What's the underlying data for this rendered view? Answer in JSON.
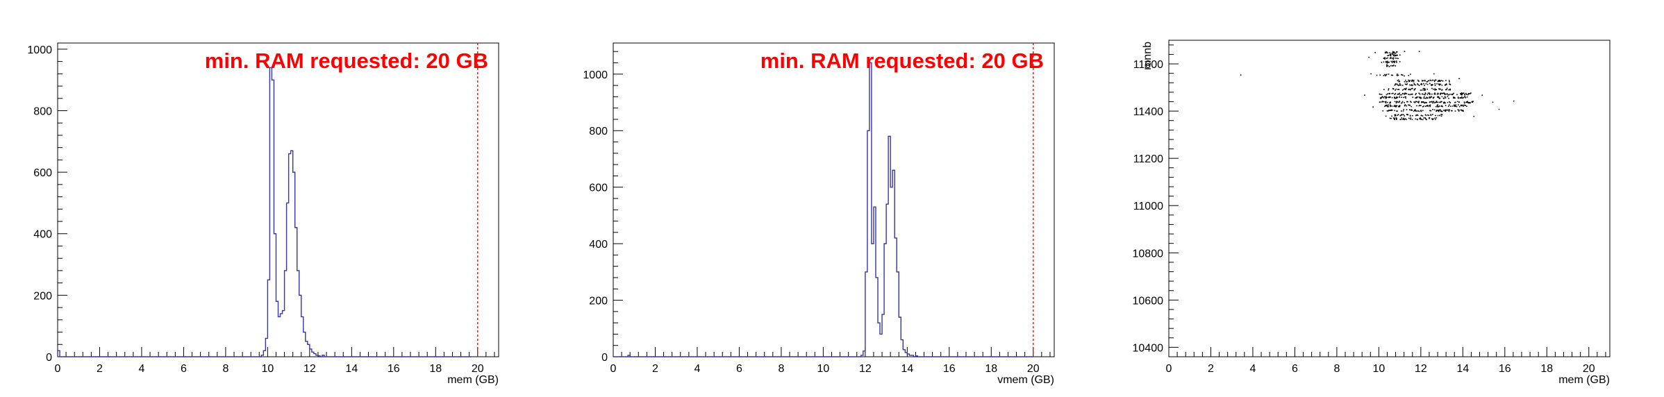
{
  "chart_data": [
    {
      "type": "histogram",
      "title": "",
      "xlabel": "mem (GB)",
      "ylabel": "",
      "xlim": [
        0,
        21
      ],
      "ylim": [
        0,
        1020
      ],
      "xticks": [
        0,
        2,
        4,
        6,
        8,
        10,
        12,
        14,
        16,
        18,
        20
      ],
      "yticks": [
        0,
        200,
        400,
        600,
        800,
        1000
      ],
      "line_color": "#3333aa",
      "annotation": "min. RAM requested: 20 GB",
      "annotation_color": "#ff0000",
      "threshold_line": 20,
      "threshold_color": "#ff0000",
      "bin_width": 0.1,
      "bins_start": 0,
      "counts": [
        20,
        0,
        0,
        0,
        0,
        0,
        0,
        0,
        0,
        0,
        0,
        0,
        0,
        0,
        0,
        0,
        0,
        0,
        0,
        0,
        0,
        0,
        0,
        0,
        0,
        0,
        0,
        0,
        0,
        0,
        0,
        0,
        0,
        0,
        0,
        0,
        0,
        0,
        0,
        0,
        0,
        0,
        0,
        0,
        0,
        0,
        0,
        0,
        0,
        0,
        0,
        0,
        0,
        0,
        0,
        0,
        0,
        0,
        0,
        0,
        0,
        0,
        0,
        0,
        0,
        0,
        0,
        0,
        0,
        0,
        0,
        0,
        0,
        0,
        0,
        0,
        0,
        0,
        0,
        0,
        0,
        0,
        0,
        0,
        0,
        0,
        0,
        0,
        0,
        0,
        0,
        0,
        0,
        0,
        0,
        0,
        0,
        5,
        20,
        60,
        250,
        940,
        900,
        400,
        180,
        130,
        140,
        150,
        280,
        500,
        660,
        670,
        600,
        420,
        280,
        200,
        130,
        80,
        50,
        40,
        25,
        15,
        10,
        5,
        3,
        0,
        5,
        0,
        0,
        0,
        0,
        0,
        0,
        0,
        0,
        0,
        0,
        0,
        0,
        0,
        0,
        0,
        0,
        0,
        0,
        0,
        0,
        0,
        0,
        0,
        0,
        0,
        0,
        0,
        0,
        0,
        0,
        0,
        0,
        0,
        0,
        0,
        0,
        0,
        0,
        0,
        0,
        0,
        0,
        0,
        0,
        0,
        0,
        0,
        0,
        0,
        0,
        0,
        0,
        0,
        0,
        0,
        0,
        0,
        0,
        0,
        0,
        0,
        0,
        0,
        0,
        0,
        0,
        0,
        0,
        0,
        0
      ]
    },
    {
      "type": "histogram",
      "title": "",
      "xlabel": "vmem (GB)",
      "ylabel": "",
      "xlim": [
        0,
        21
      ],
      "ylim": [
        0,
        1110
      ],
      "xticks": [
        0,
        2,
        4,
        6,
        8,
        10,
        12,
        14,
        16,
        18,
        20
      ],
      "yticks": [
        0,
        200,
        400,
        600,
        800,
        1000
      ],
      "line_color": "#3333aa",
      "annotation": "min. RAM requested: 20 GB",
      "annotation_color": "#ff0000",
      "threshold_line": 20,
      "threshold_color": "#ff0000",
      "bin_width": 0.1,
      "bins_start": 0,
      "counts": [
        0,
        0,
        0,
        0,
        0,
        0,
        0,
        5,
        0,
        0,
        0,
        0,
        0,
        0,
        0,
        0,
        0,
        0,
        0,
        0,
        0,
        0,
        0,
        0,
        0,
        0,
        0,
        0,
        0,
        0,
        0,
        0,
        0,
        0,
        0,
        0,
        0,
        0,
        0,
        0,
        0,
        0,
        0,
        0,
        0,
        0,
        0,
        0,
        0,
        0,
        0,
        0,
        0,
        0,
        0,
        0,
        0,
        0,
        0,
        0,
        0,
        0,
        0,
        0,
        0,
        0,
        0,
        0,
        0,
        0,
        0,
        0,
        0,
        0,
        0,
        0,
        0,
        0,
        0,
        0,
        0,
        0,
        0,
        0,
        0,
        0,
        0,
        0,
        0,
        0,
        0,
        0,
        0,
        0,
        0,
        0,
        0,
        0,
        0,
        0,
        0,
        0,
        0,
        0,
        0,
        0,
        0,
        0,
        0,
        0,
        0,
        0,
        0,
        0,
        0,
        0,
        0,
        0,
        5,
        20,
        300,
        800,
        1040,
        400,
        530,
        280,
        120,
        80,
        150,
        400,
        540,
        780,
        600,
        660,
        420,
        300,
        140,
        60,
        25,
        15,
        10,
        5,
        5,
        0,
        3,
        0,
        0,
        0,
        0,
        0,
        0,
        0,
        0,
        0,
        0,
        0,
        0,
        0,
        0,
        0,
        0,
        0,
        0,
        0,
        0,
        0,
        0,
        0,
        0,
        0,
        0,
        0,
        0,
        0,
        0,
        0,
        0,
        0,
        0,
        0,
        0,
        0,
        0,
        0,
        0,
        0,
        0,
        0,
        0,
        0,
        0,
        0,
        0,
        0,
        0,
        0,
        0,
        0,
        0,
        0
      ]
    },
    {
      "type": "scatter",
      "title": "",
      "xlabel": "mem (GB)",
      "ylabel": "runnb",
      "xlim": [
        0,
        21
      ],
      "ylim": [
        10360,
        11700
      ],
      "xticks": [
        0,
        2,
        4,
        6,
        8,
        10,
        12,
        14,
        16,
        18,
        20
      ],
      "yticks": [
        10400,
        10600,
        10800,
        11000,
        11200,
        11400,
        11600
      ],
      "marker_color": "#000000",
      "bands": [
        {
          "y": 11650,
          "x_min": 10.2,
          "x_max": 10.9,
          "density": 0.9
        },
        {
          "y": 11640,
          "x_min": 10.2,
          "x_max": 11.0,
          "density": 0.9
        },
        {
          "y": 11625,
          "x_min": 10.2,
          "x_max": 10.9,
          "density": 0.9
        },
        {
          "y": 11610,
          "x_min": 10.1,
          "x_max": 11.0,
          "density": 0.9
        },
        {
          "y": 11595,
          "x_min": 10.3,
          "x_max": 10.8,
          "density": 0.8
        },
        {
          "y": 11555,
          "x_min": 9.8,
          "x_max": 11.6,
          "density": 0.4
        },
        {
          "y": 11530,
          "x_min": 10.8,
          "x_max": 13.4,
          "density": 0.7
        },
        {
          "y": 11515,
          "x_min": 10.7,
          "x_max": 13.4,
          "density": 0.75
        },
        {
          "y": 11495,
          "x_min": 10.2,
          "x_max": 13.5,
          "density": 0.6
        },
        {
          "y": 11475,
          "x_min": 10.0,
          "x_max": 14.4,
          "density": 0.85
        },
        {
          "y": 11460,
          "x_min": 10.0,
          "x_max": 14.2,
          "density": 0.85
        },
        {
          "y": 11440,
          "x_min": 10.0,
          "x_max": 14.6,
          "density": 0.8
        },
        {
          "y": 11425,
          "x_min": 10.2,
          "x_max": 14.3,
          "density": 0.75
        },
        {
          "y": 11405,
          "x_min": 10.1,
          "x_max": 14.0,
          "density": 0.7
        },
        {
          "y": 11385,
          "x_min": 10.3,
          "x_max": 13.0,
          "density": 0.6
        },
        {
          "y": 11370,
          "x_min": 10.4,
          "x_max": 12.8,
          "density": 0.75
        }
      ],
      "sparse_points": [
        [
          3.4,
          11555
        ],
        [
          9.8,
          11650
        ],
        [
          9.5,
          11630
        ],
        [
          11.2,
          11655
        ],
        [
          11.9,
          11655
        ],
        [
          9.6,
          11560
        ],
        [
          9.3,
          11470
        ],
        [
          9.7,
          11420
        ],
        [
          14.5,
          11380
        ],
        [
          15.4,
          11440
        ],
        [
          15.7,
          11410
        ],
        [
          16.4,
          11445
        ],
        [
          14.9,
          11470
        ],
        [
          13.8,
          11540
        ],
        [
          12.6,
          11560
        ]
      ]
    }
  ]
}
